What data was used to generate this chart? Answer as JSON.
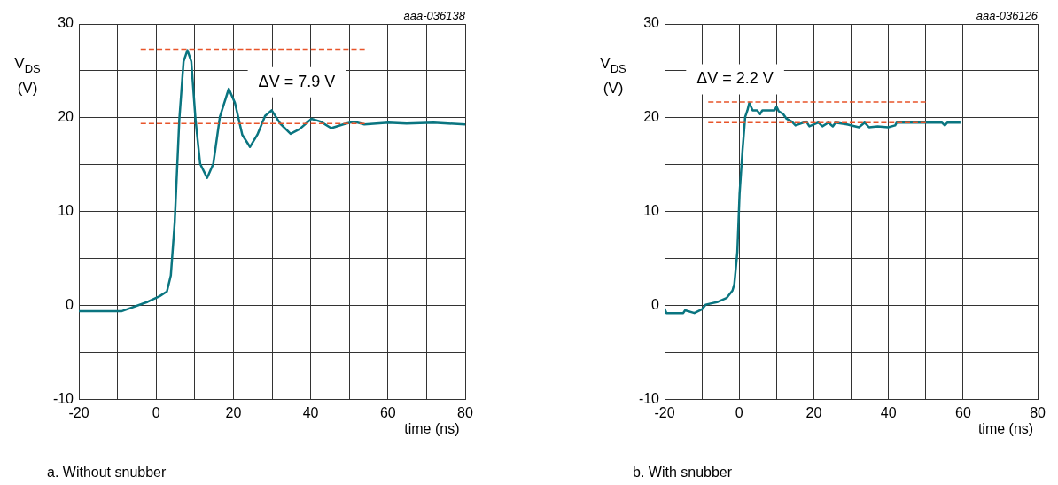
{
  "chart_data": [
    {
      "type": "line",
      "title": "a. Without snubber",
      "xlabel": "time (ns)",
      "ylabel": "V$_{DS}$ (V)",
      "xlim": [
        -20,
        80
      ],
      "xticks": [
        -20,
        {
          "value": -10,
          "label": null
        },
        0,
        {
          "value": 10,
          "label": null
        },
        20,
        {
          "value": 30,
          "label": null
        },
        40,
        {
          "value": 50,
          "label": null
        },
        60,
        {
          "value": 70,
          "label": null
        },
        80
      ],
      "ylim": [
        -10,
        30
      ],
      "yticks": [
        -10,
        {
          "value": -5,
          "label": null
        },
        0,
        {
          "value": 5,
          "label": null
        },
        10,
        {
          "value": 15,
          "label": null
        },
        20,
        {
          "value": 25,
          "label": null
        },
        30
      ],
      "grid": true,
      "legend": false,
      "marker": "none",
      "series": [
        {
          "color": "#0a7580",
          "line_style": "solid",
          "x": [
            -20,
            -9,
            -2.2,
            0.9,
            2.8,
            3.8,
            4.8,
            6,
            7.1,
            8.1,
            9.1,
            10.2,
            11.4,
            13.2,
            14.8,
            16.5,
            18.8,
            20.4,
            22.3,
            24.3,
            26.2,
            28.2,
            29.9,
            32.1,
            34.8,
            37.1,
            40.2,
            42.6,
            45.3,
            48.4,
            51.2,
            53.9,
            60.1,
            64.8,
            71.8,
            80
          ],
          "values": [
            -0.6,
            -0.6,
            0.4,
            1.0,
            1.5,
            3.2,
            8.8,
            19.8,
            26,
            27.2,
            26,
            19.8,
            15.1,
            13.6,
            15.1,
            20.1,
            23.1,
            21.6,
            18.2,
            16.9,
            18.2,
            20.2,
            20.8,
            19.4,
            18.3,
            18.8,
            19.9,
            19.6,
            18.9,
            19.3,
            19.6,
            19.3,
            19.5,
            19.4,
            19.5,
            19.3
          ]
        },
        {
          "color": "#e8542a",
          "line_style": "dashed",
          "x": [
            -4,
            54
          ],
          "values": [
            27.3,
            27.3
          ]
        },
        {
          "color": "#e8542a",
          "line_style": "dashed",
          "x": [
            -4,
            54
          ],
          "values": [
            19.4,
            19.4
          ]
        }
      ],
      "annotations": [
        "ΔV = 7.9 V",
        "aaa-036138"
      ]
    },
    {
      "type": "line",
      "title": "b. With snubber",
      "xlabel": "time (ns)",
      "ylabel": "V$_{DS}$ (V)",
      "xlim": [
        -20,
        80
      ],
      "xticks": [
        -20,
        {
          "value": -10,
          "label": null
        },
        0,
        {
          "value": 10,
          "label": null
        },
        20,
        {
          "value": 30,
          "label": null
        },
        40,
        {
          "value": 50,
          "label": null
        },
        60,
        {
          "value": 70,
          "label": null
        },
        80
      ],
      "ylim": [
        -10,
        30
      ],
      "yticks": [
        -10,
        {
          "value": -5,
          "label": null
        },
        0,
        {
          "value": 5,
          "label": null
        },
        10,
        {
          "value": 15,
          "label": null
        },
        20,
        {
          "value": 25,
          "label": null
        },
        30
      ],
      "grid": true,
      "legend": false,
      "marker": "none",
      "series": [
        {
          "color": "#0a7580",
          "line_style": "solid",
          "x": [
            -20,
            -19.5,
            -15,
            -14.5,
            -12,
            -10,
            -9,
            -5.7,
            -3.4,
            -1.8,
            -1.3,
            -0.5,
            0.1,
            0.9,
            1.6,
            2.2,
            2.7,
            3.6,
            4.8,
            5.6,
            6.2,
            9.5,
            10.0,
            10.6,
            11.8,
            12.7,
            14.1,
            15.1,
            18.0,
            18.8,
            21.2,
            22.3,
            23.9,
            25.1,
            25.8,
            28.9,
            32.1,
            33.6,
            34.8,
            37.1,
            39.9,
            41.8,
            42.2,
            54.3,
            55.1,
            55.8,
            59.3
          ],
          "values": [
            -0.3,
            -0.8,
            -0.8,
            -0.5,
            -0.8,
            -0.4,
            0.1,
            0.4,
            0.8,
            1.6,
            2.3,
            5.7,
            11.9,
            16.6,
            20.1,
            20.8,
            21.6,
            20.8,
            20.8,
            20.4,
            20.8,
            20.8,
            21.2,
            20.7,
            20.4,
            19.9,
            19.6,
            19.2,
            19.6,
            19.1,
            19.5,
            19.1,
            19.5,
            19.1,
            19.5,
            19.3,
            19.0,
            19.5,
            19.0,
            19.1,
            19.0,
            19.2,
            19.5,
            19.5,
            19.2,
            19.5,
            19.5
          ]
        },
        {
          "color": "#e8542a",
          "line_style": "dashed",
          "x": [
            -8.3,
            50
          ],
          "values": [
            21.7,
            21.7
          ]
        },
        {
          "color": "#e8542a",
          "line_style": "dashed",
          "x": [
            -8.3,
            50
          ],
          "values": [
            19.5,
            19.5
          ]
        }
      ],
      "annotations": [
        "ΔV = 2.2 V",
        "aaa-036126"
      ]
    }
  ]
}
